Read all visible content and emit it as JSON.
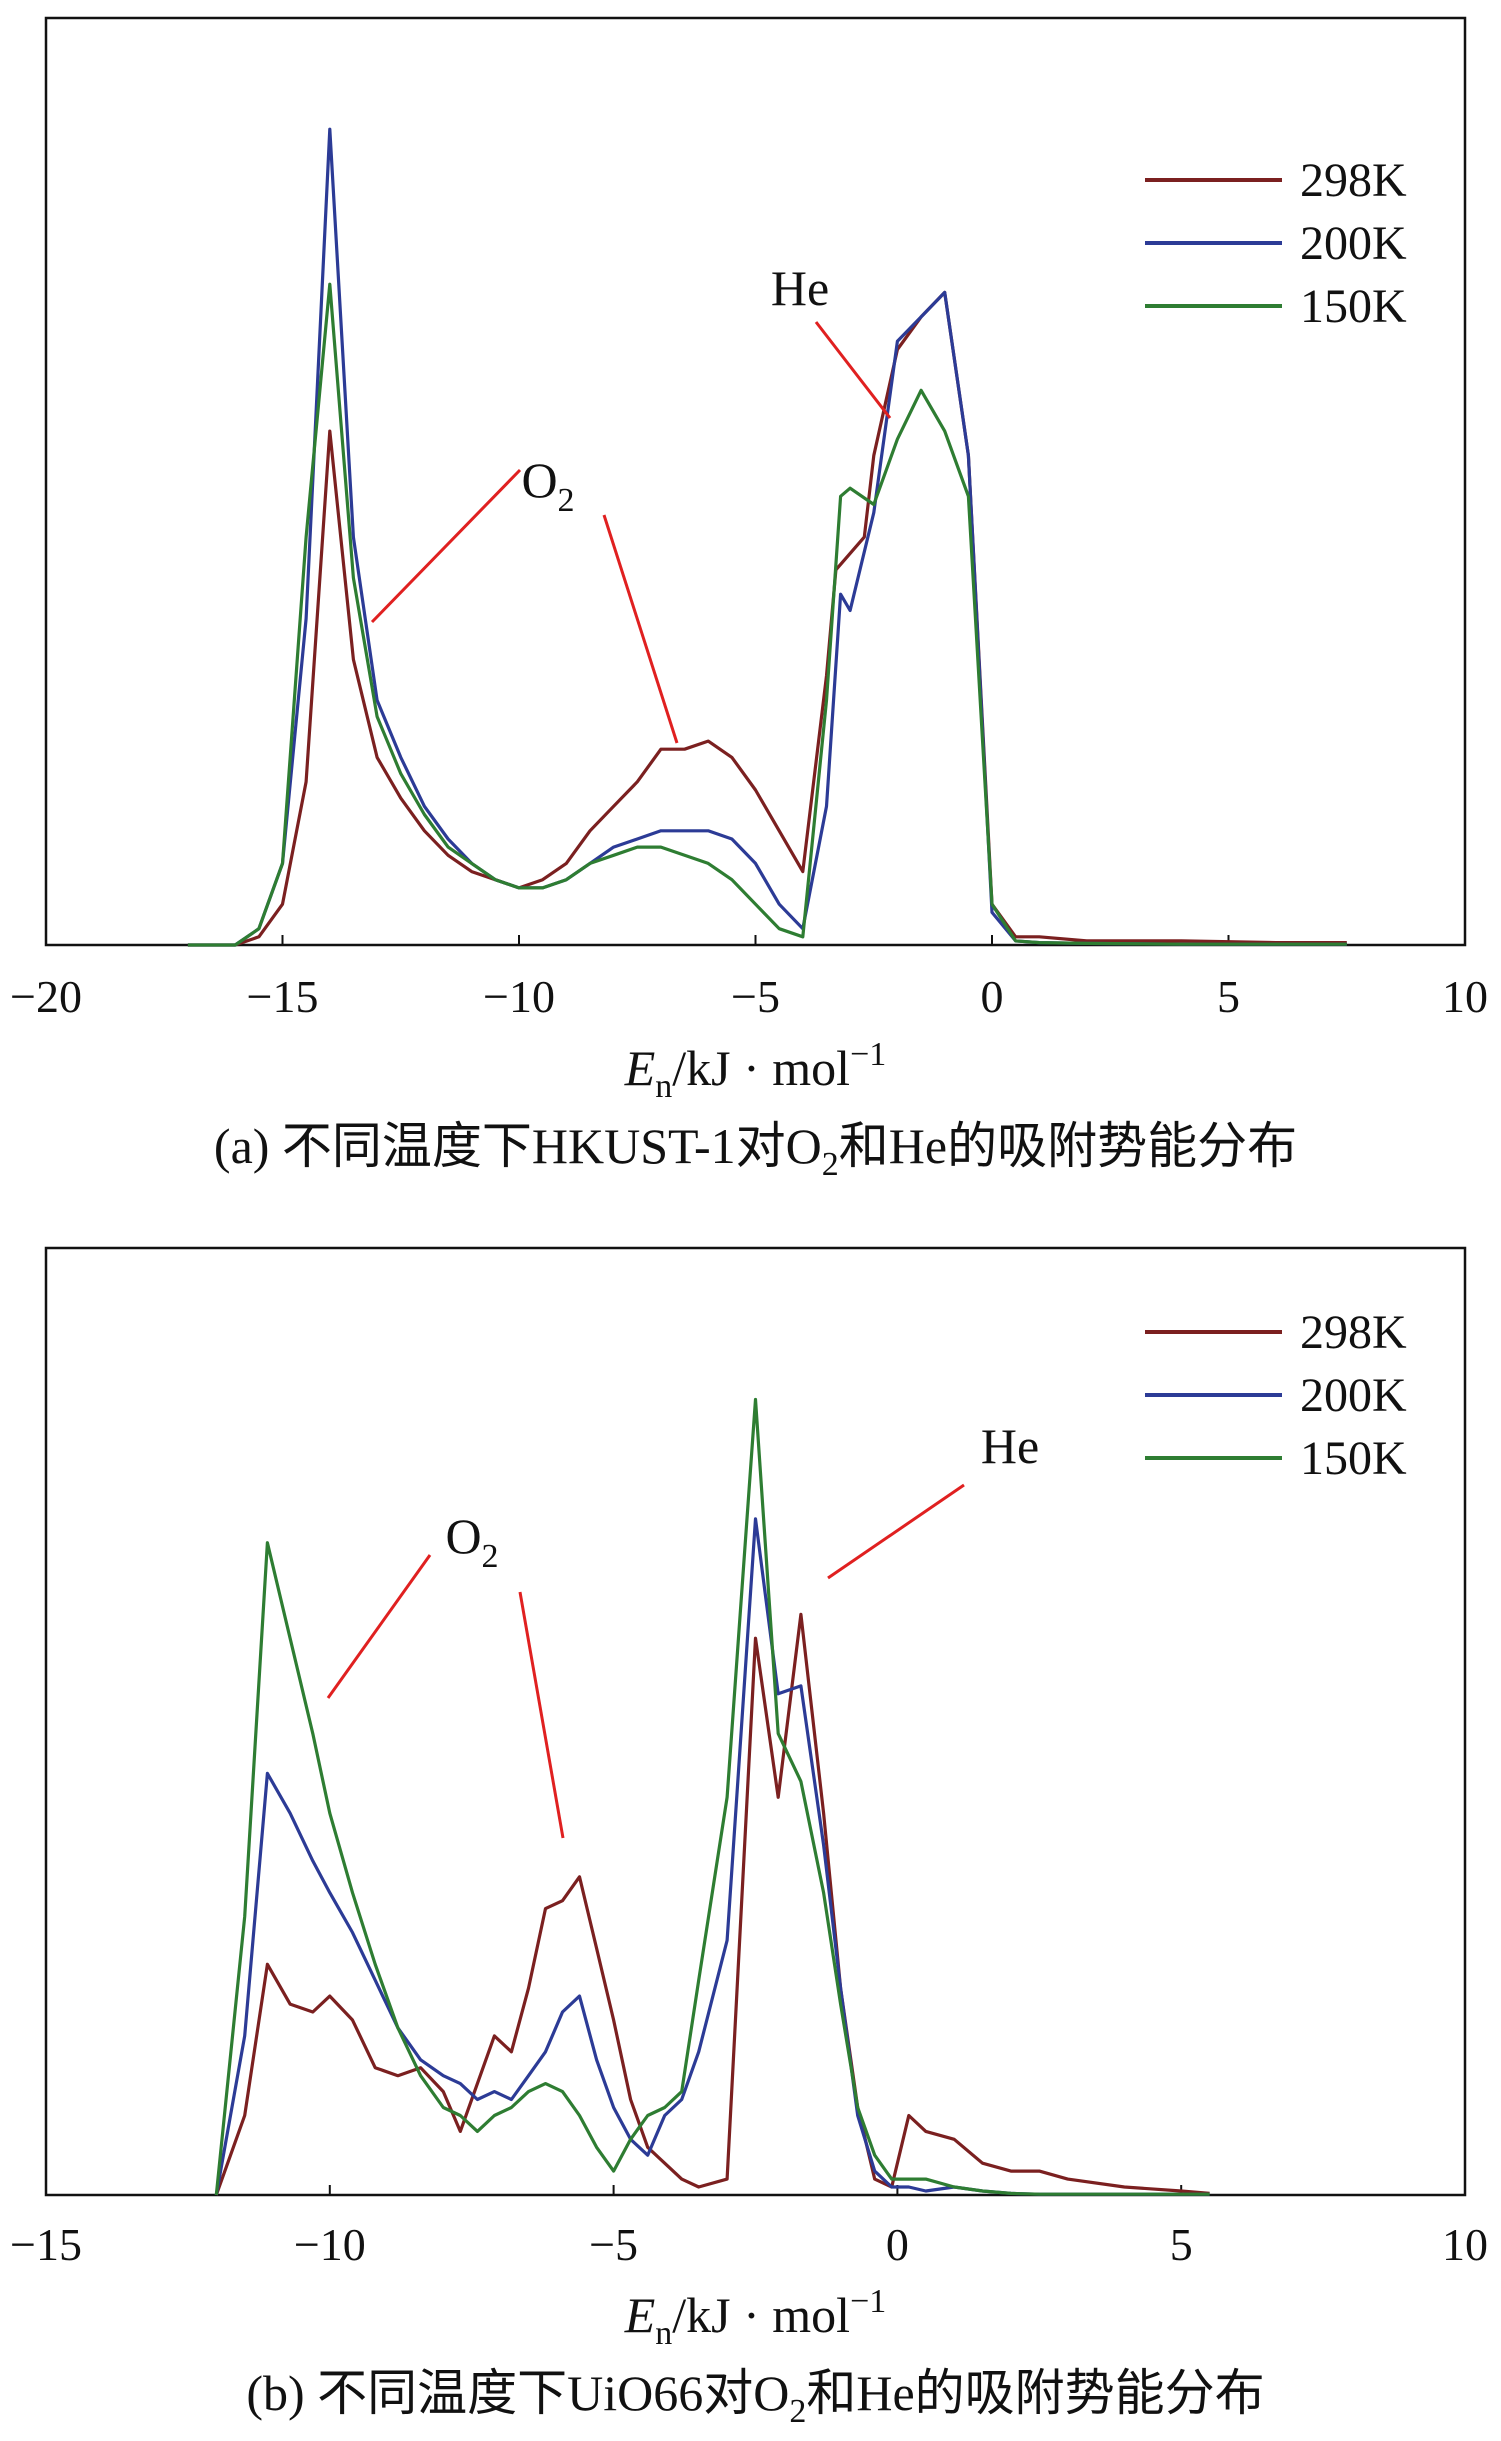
{
  "chart_data": [
    {
      "type": "line",
      "panel": "a",
      "caption_prefix": "(a) 不同温度下HKUST-1对O",
      "caption_sub": "2",
      "caption_suffix": "和He的吸附势能分布",
      "xlabel_italic": "E",
      "xlabel_sub": "n",
      "xlabel_rest": "/kJ · mol",
      "xlabel_sup": "−1",
      "xlim": [
        -20,
        10
      ],
      "ylim": [
        0,
        1
      ],
      "xticks": [
        -20,
        -15,
        -10,
        -5,
        0,
        5,
        10
      ],
      "xtick_labels": [
        "−20",
        "−15",
        "−10",
        "−5",
        "0",
        "5",
        "10"
      ],
      "legend_position": "top-right",
      "annotations": [
        {
          "text": "O",
          "sub": "2",
          "species": "O2"
        },
        {
          "text": "He",
          "sub": "",
          "species": "He"
        }
      ],
      "series": [
        {
          "name": "298K",
          "color": "#7b2020",
          "x": [
            -17,
            -16,
            -15.5,
            -15,
            -14.5,
            -14,
            -13.5,
            -13,
            -12.5,
            -12,
            -11.5,
            -11,
            -10.5,
            -10,
            -9.5,
            -9,
            -8.5,
            -8,
            -7.5,
            -7,
            -6.5,
            -6,
            -5.5,
            -5,
            -4.5,
            -4,
            -3.5,
            -3.3,
            -3,
            -2.7,
            -2.5,
            -2,
            -1.5,
            -1,
            -0.5,
            0,
            0.5,
            1,
            2,
            4,
            6,
            7.5
          ],
          "y": [
            0,
            0,
            0.01,
            0.05,
            0.2,
            0.63,
            0.35,
            0.23,
            0.18,
            0.14,
            0.11,
            0.09,
            0.08,
            0.07,
            0.08,
            0.1,
            0.14,
            0.17,
            0.2,
            0.24,
            0.24,
            0.25,
            0.23,
            0.19,
            0.14,
            0.09,
            0.33,
            0.46,
            0.48,
            0.5,
            0.6,
            0.73,
            0.77,
            0.8,
            0.6,
            0.05,
            0.01,
            0.01,
            0.005,
            0.005,
            0.003,
            0.003
          ]
        },
        {
          "name": "200K",
          "color": "#2c3b96",
          "x": [
            -17,
            -16,
            -15.5,
            -15,
            -14.5,
            -14,
            -13.5,
            -13,
            -12.5,
            -12,
            -11.5,
            -11,
            -10.5,
            -10,
            -9.5,
            -9,
            -8.5,
            -8,
            -7.5,
            -7,
            -6.5,
            -6,
            -5.5,
            -5,
            -4.5,
            -4,
            -3.5,
            -3.2,
            -3,
            -2.5,
            -2,
            -1.5,
            -1,
            -0.5,
            0,
            0.5,
            1,
            2,
            4,
            6,
            7.5
          ],
          "y": [
            0,
            0,
            0.02,
            0.1,
            0.4,
            1.0,
            0.5,
            0.3,
            0.23,
            0.17,
            0.13,
            0.1,
            0.08,
            0.07,
            0.07,
            0.08,
            0.1,
            0.12,
            0.13,
            0.14,
            0.14,
            0.14,
            0.13,
            0.1,
            0.05,
            0.02,
            0.17,
            0.43,
            0.41,
            0.53,
            0.74,
            0.77,
            0.8,
            0.6,
            0.04,
            0.005,
            0.003,
            0.002,
            0.001,
            0.001,
            0.001
          ]
        },
        {
          "name": "150K",
          "color": "#2e7d32",
          "x": [
            -17,
            -16,
            -15.5,
            -15,
            -14.5,
            -14,
            -13.5,
            -13,
            -12.5,
            -12,
            -11.5,
            -11,
            -10.5,
            -10,
            -9.5,
            -9,
            -8.5,
            -8,
            -7.5,
            -7,
            -6.5,
            -6,
            -5.5,
            -5,
            -4.5,
            -4,
            -3.5,
            -3.2,
            -3,
            -2.5,
            -2,
            -1.5,
            -1,
            -0.5,
            0,
            0.5,
            1,
            2,
            4,
            6,
            7.5
          ],
          "y": [
            0,
            0,
            0.02,
            0.1,
            0.5,
            0.81,
            0.45,
            0.28,
            0.21,
            0.16,
            0.12,
            0.1,
            0.08,
            0.07,
            0.07,
            0.08,
            0.1,
            0.11,
            0.12,
            0.12,
            0.11,
            0.1,
            0.08,
            0.05,
            0.02,
            0.01,
            0.3,
            0.55,
            0.56,
            0.54,
            0.62,
            0.68,
            0.63,
            0.55,
            0.05,
            0.005,
            0.003,
            0.002,
            0.001,
            0.001,
            0.001
          ]
        }
      ]
    },
    {
      "type": "line",
      "panel": "b",
      "caption_prefix": "(b) 不同温度下UiO66对O",
      "caption_sub": "2",
      "caption_suffix": "和He的吸附势能分布",
      "xlabel_italic": "E",
      "xlabel_sub": "n",
      "xlabel_rest": "/kJ · mol",
      "xlabel_sup": "−1",
      "xlim": [
        -15,
        10
      ],
      "ylim": [
        0,
        1
      ],
      "xticks": [
        -15,
        -10,
        -5,
        0,
        5,
        10
      ],
      "xtick_labels": [
        "−15",
        "−10",
        "−5",
        "0",
        "5",
        "10"
      ],
      "legend_position": "top-right",
      "annotations": [
        {
          "text": "O",
          "sub": "2",
          "species": "O2"
        },
        {
          "text": "He",
          "sub": "",
          "species": "He"
        }
      ],
      "series": [
        {
          "name": "298K",
          "color": "#7b2020",
          "x": [
            -12,
            -11.5,
            -11.1,
            -10.7,
            -10.3,
            -10,
            -9.6,
            -9.2,
            -8.8,
            -8.4,
            -8,
            -7.7,
            -7.4,
            -7.1,
            -6.8,
            -6.5,
            -6.2,
            -5.9,
            -5.6,
            -5.3,
            -5,
            -4.7,
            -4.4,
            -4.1,
            -3.8,
            -3.5,
            -3,
            -2.5,
            -2.1,
            -1.7,
            -1.3,
            -1,
            -0.7,
            -0.4,
            -0.1,
            0.2,
            0.5,
            1,
            1.5,
            2,
            2.5,
            3,
            4,
            5,
            5.5
          ],
          "y": [
            0,
            0.1,
            0.29,
            0.24,
            0.23,
            0.25,
            0.22,
            0.16,
            0.15,
            0.16,
            0.13,
            0.08,
            0.14,
            0.2,
            0.18,
            0.26,
            0.36,
            0.37,
            0.4,
            0.31,
            0.22,
            0.12,
            0.06,
            0.04,
            0.02,
            0.01,
            0.02,
            0.7,
            0.5,
            0.73,
            0.48,
            0.26,
            0.11,
            0.02,
            0.01,
            0.1,
            0.08,
            0.07,
            0.04,
            0.03,
            0.03,
            0.02,
            0.01,
            0.005,
            0.002
          ]
        },
        {
          "name": "200K",
          "color": "#2c3b96",
          "x": [
            -12,
            -11.5,
            -11.1,
            -10.7,
            -10.3,
            -10,
            -9.6,
            -9.2,
            -8.8,
            -8.4,
            -8,
            -7.7,
            -7.4,
            -7.1,
            -6.8,
            -6.5,
            -6.2,
            -5.9,
            -5.6,
            -5.3,
            -5,
            -4.7,
            -4.4,
            -4.1,
            -3.8,
            -3.5,
            -3,
            -2.5,
            -2.1,
            -1.7,
            -1.3,
            -1,
            -0.7,
            -0.4,
            -0.1,
            0.2,
            0.5,
            1,
            1.5,
            2,
            2.5,
            3,
            4,
            5,
            5.5
          ],
          "y": [
            0,
            0.2,
            0.53,
            0.48,
            0.42,
            0.38,
            0.33,
            0.27,
            0.21,
            0.17,
            0.15,
            0.14,
            0.12,
            0.13,
            0.12,
            0.15,
            0.18,
            0.23,
            0.25,
            0.17,
            0.11,
            0.07,
            0.05,
            0.1,
            0.12,
            0.18,
            0.32,
            0.85,
            0.63,
            0.64,
            0.44,
            0.26,
            0.1,
            0.03,
            0.01,
            0.01,
            0.005,
            0.01,
            0.005,
            0.002,
            0.001,
            0.001,
            0.001,
            0.001,
            0.001
          ]
        },
        {
          "name": "150K",
          "color": "#2e7d32",
          "x": [
            -12,
            -11.5,
            -11.1,
            -10.7,
            -10.3,
            -10,
            -9.6,
            -9.2,
            -8.8,
            -8.4,
            -8,
            -7.7,
            -7.4,
            -7.1,
            -6.8,
            -6.5,
            -6.2,
            -5.9,
            -5.6,
            -5.3,
            -5,
            -4.7,
            -4.4,
            -4.1,
            -3.8,
            -3.5,
            -3,
            -2.5,
            -2.1,
            -1.7,
            -1.3,
            -1,
            -0.7,
            -0.4,
            -0.1,
            0.2,
            0.5,
            1,
            1.5,
            2,
            2.5,
            3,
            4,
            5,
            5.5
          ],
          "y": [
            0,
            0.35,
            0.82,
            0.7,
            0.58,
            0.48,
            0.38,
            0.29,
            0.21,
            0.15,
            0.11,
            0.1,
            0.08,
            0.1,
            0.11,
            0.13,
            0.14,
            0.13,
            0.1,
            0.06,
            0.03,
            0.07,
            0.1,
            0.11,
            0.13,
            0.27,
            0.5,
            1.0,
            0.58,
            0.52,
            0.38,
            0.24,
            0.11,
            0.05,
            0.02,
            0.02,
            0.02,
            0.01,
            0.005,
            0.002,
            0.001,
            0.001,
            0.001,
            0.001,
            0.001
          ]
        }
      ]
    }
  ]
}
